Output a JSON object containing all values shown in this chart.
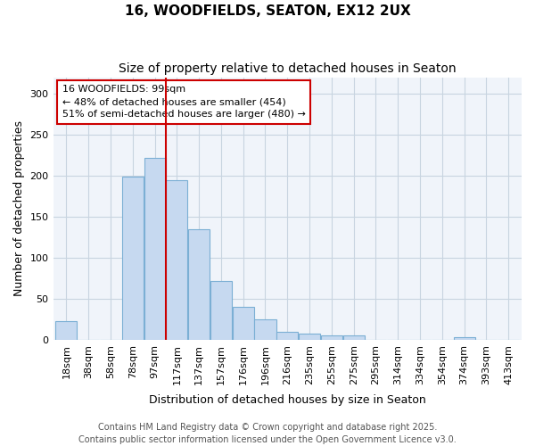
{
  "title": "16, WOODFIELDS, SEATON, EX12 2UX",
  "subtitle": "Size of property relative to detached houses in Seaton",
  "xlabel": "Distribution of detached houses by size in Seaton",
  "ylabel": "Number of detached properties",
  "bins": [
    "18sqm",
    "38sqm",
    "58sqm",
    "78sqm",
    "97sqm",
    "117sqm",
    "137sqm",
    "157sqm",
    "176sqm",
    "196sqm",
    "216sqm",
    "235sqm",
    "255sqm",
    "275sqm",
    "295sqm",
    "314sqm",
    "334sqm",
    "354sqm",
    "374sqm",
    "393sqm",
    "413sqm"
  ],
  "values": [
    23,
    0,
    0,
    199,
    222,
    195,
    135,
    72,
    40,
    25,
    10,
    8,
    5,
    5,
    0,
    0,
    0,
    0,
    3,
    0,
    0
  ],
  "bar_color": "#c6d9f0",
  "bar_edge_color": "#7bafd4",
  "vline_color": "#cc0000",
  "vline_x": 4.5,
  "annotation_text": "16 WOODFIELDS: 99sqm\n← 48% of detached houses are smaller (454)\n51% of semi-detached houses are larger (480) →",
  "annotation_box_facecolor": "#ffffff",
  "annotation_box_edgecolor": "#cc0000",
  "ylim": [
    0,
    320
  ],
  "yticks": [
    0,
    50,
    100,
    150,
    200,
    250,
    300
  ],
  "background_color": "#ffffff",
  "plot_bg_color": "#f0f4fa",
  "grid_color": "#c8d4e0",
  "footer_text": "Contains HM Land Registry data © Crown copyright and database right 2025.\nContains public sector information licensed under the Open Government Licence v3.0.",
  "title_fontsize": 11,
  "subtitle_fontsize": 10,
  "xlabel_fontsize": 9,
  "ylabel_fontsize": 9,
  "tick_fontsize": 8,
  "annotation_fontsize": 8,
  "footer_fontsize": 7
}
